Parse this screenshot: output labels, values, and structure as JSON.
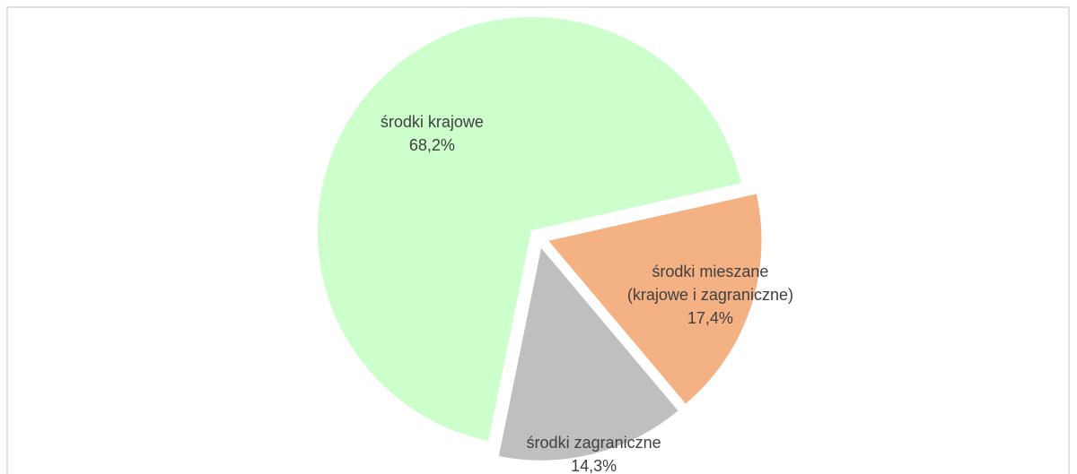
{
  "chart_data": {
    "type": "pie",
    "categories": [
      "środki krajowe",
      "środki mieszane\n(krajowe i zagraniczne)",
      "środki zagraniczne"
    ],
    "values": [
      68.2,
      17.4,
      14.3
    ],
    "value_labels": [
      "68,2%",
      "17,4%",
      "14,3%"
    ],
    "colors": [
      "#ccffcc",
      "#f4b183",
      "#bfbfbf"
    ]
  }
}
